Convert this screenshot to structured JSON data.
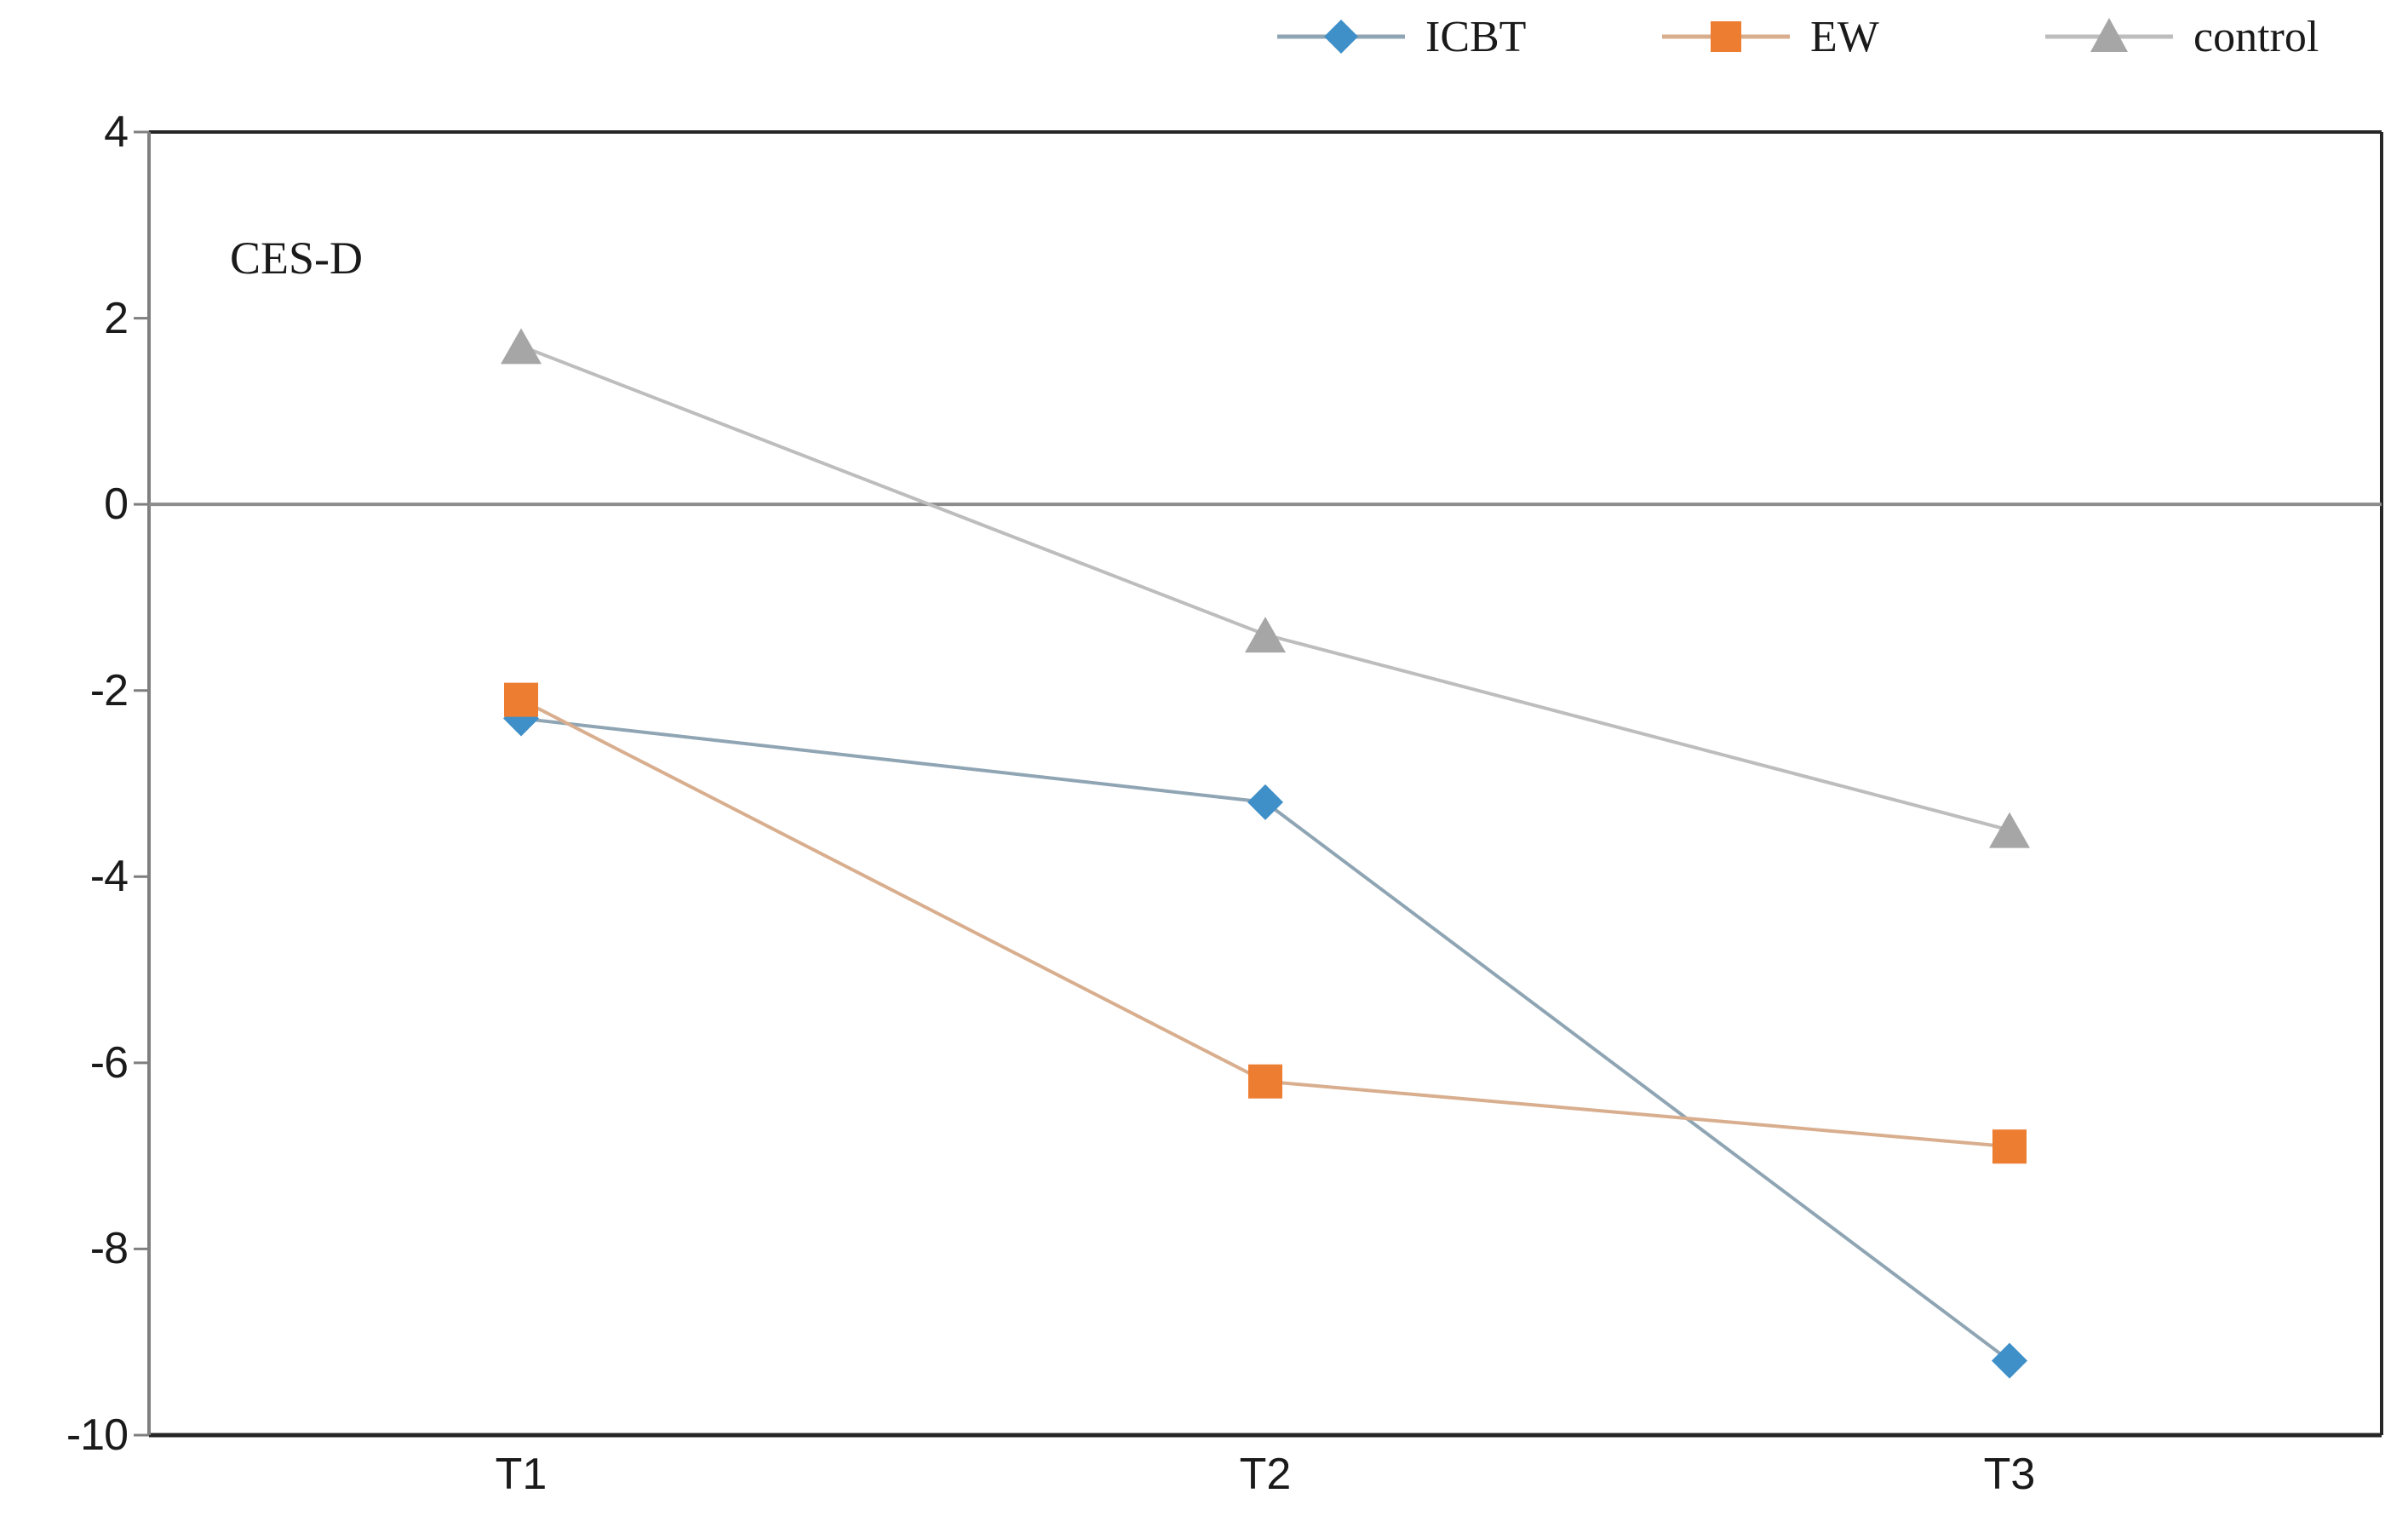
{
  "chart_data": {
    "type": "line",
    "title": "",
    "annotation": "CES-D",
    "categories": [
      "T1",
      "T2",
      "T3"
    ],
    "series": [
      {
        "name": "ICBT",
        "marker": "diamond",
        "color": "#3F8FC8",
        "line_color": "#8FA5B4",
        "values": [
          -2.3,
          -3.2,
          -9.2
        ]
      },
      {
        "name": "EW",
        "marker": "square",
        "color": "#ED7D31",
        "line_color": "#D8AE8E",
        "values": [
          -2.1,
          -6.2,
          -6.9
        ]
      },
      {
        "name": "control",
        "marker": "triangle",
        "color": "#A6A6A6",
        "line_color": "#BDBDBD",
        "values": [
          1.7,
          -1.4,
          -3.5
        ]
      }
    ],
    "ylim": [
      -10,
      4
    ],
    "ytick_interval": 2,
    "yticks": [
      "4",
      "2",
      "0",
      "-2",
      "-4",
      "-6",
      "-8",
      "-10"
    ],
    "xlabel": "",
    "ylabel": "",
    "grid": "zero-line-only",
    "legend_position": "top-right",
    "colors": {
      "axis": "#7F7F7F",
      "border": "#262626",
      "zero_line": "#8C8C8C",
      "text": "#1A1A1A"
    }
  }
}
